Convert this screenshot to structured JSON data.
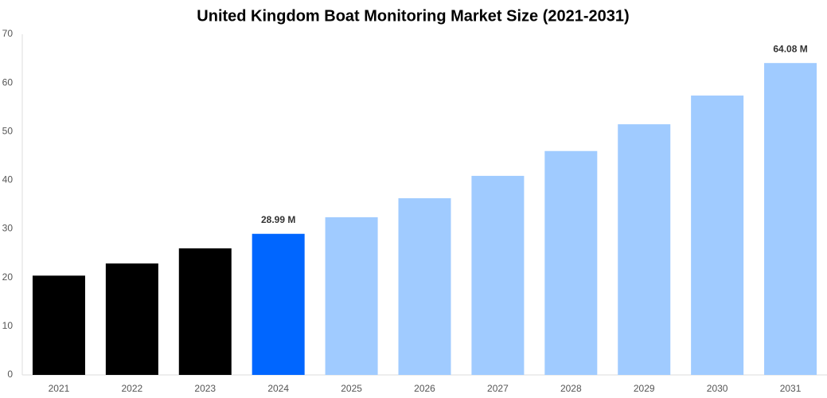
{
  "chart_data": {
    "type": "bar",
    "title": "United Kingdom Boat Monitoring Market Size (2021-2031)",
    "categories": [
      "2021",
      "2022",
      "2023",
      "2024",
      "2025",
      "2026",
      "2027",
      "2028",
      "2029",
      "2030",
      "2031"
    ],
    "values": [
      20.4,
      22.9,
      26.0,
      28.99,
      32.4,
      36.3,
      40.9,
      46.0,
      51.5,
      57.4,
      64.08
    ],
    "value_labels": [
      null,
      null,
      null,
      "28.99 M",
      null,
      null,
      null,
      null,
      null,
      null,
      "64.08 M"
    ],
    "colors": [
      "#000000",
      "#000000",
      "#000000",
      "#0066ff",
      "#a0cbff",
      "#a0cbff",
      "#a0cbff",
      "#a0cbff",
      "#a0cbff",
      "#a0cbff",
      "#a0cbff"
    ],
    "ylim": [
      0,
      70
    ],
    "yticks": [
      0,
      10,
      20,
      30,
      40,
      50,
      60,
      70
    ],
    "grid": false
  }
}
